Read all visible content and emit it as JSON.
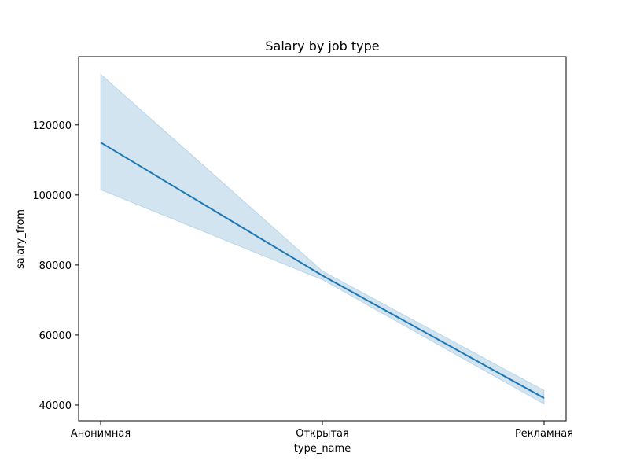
{
  "chart_data": {
    "type": "line",
    "title": "Salary by job type",
    "xlabel": "type_name",
    "ylabel": "salary_from",
    "categories": [
      "Анонимная",
      "Открытая",
      "Рекламная"
    ],
    "series": [
      {
        "values": [
          115000,
          77000,
          42000
        ],
        "ci_lower": [
          101500,
          75800,
          40300
        ],
        "ci_upper": [
          134500,
          78300,
          44200
        ],
        "color": "#1f77b4",
        "band_color": "#1f77b4"
      }
    ],
    "ylim": [
      35500,
      139500
    ],
    "yticks": [
      40000,
      60000,
      80000,
      100000,
      120000
    ],
    "grid": false,
    "legend": "none"
  }
}
